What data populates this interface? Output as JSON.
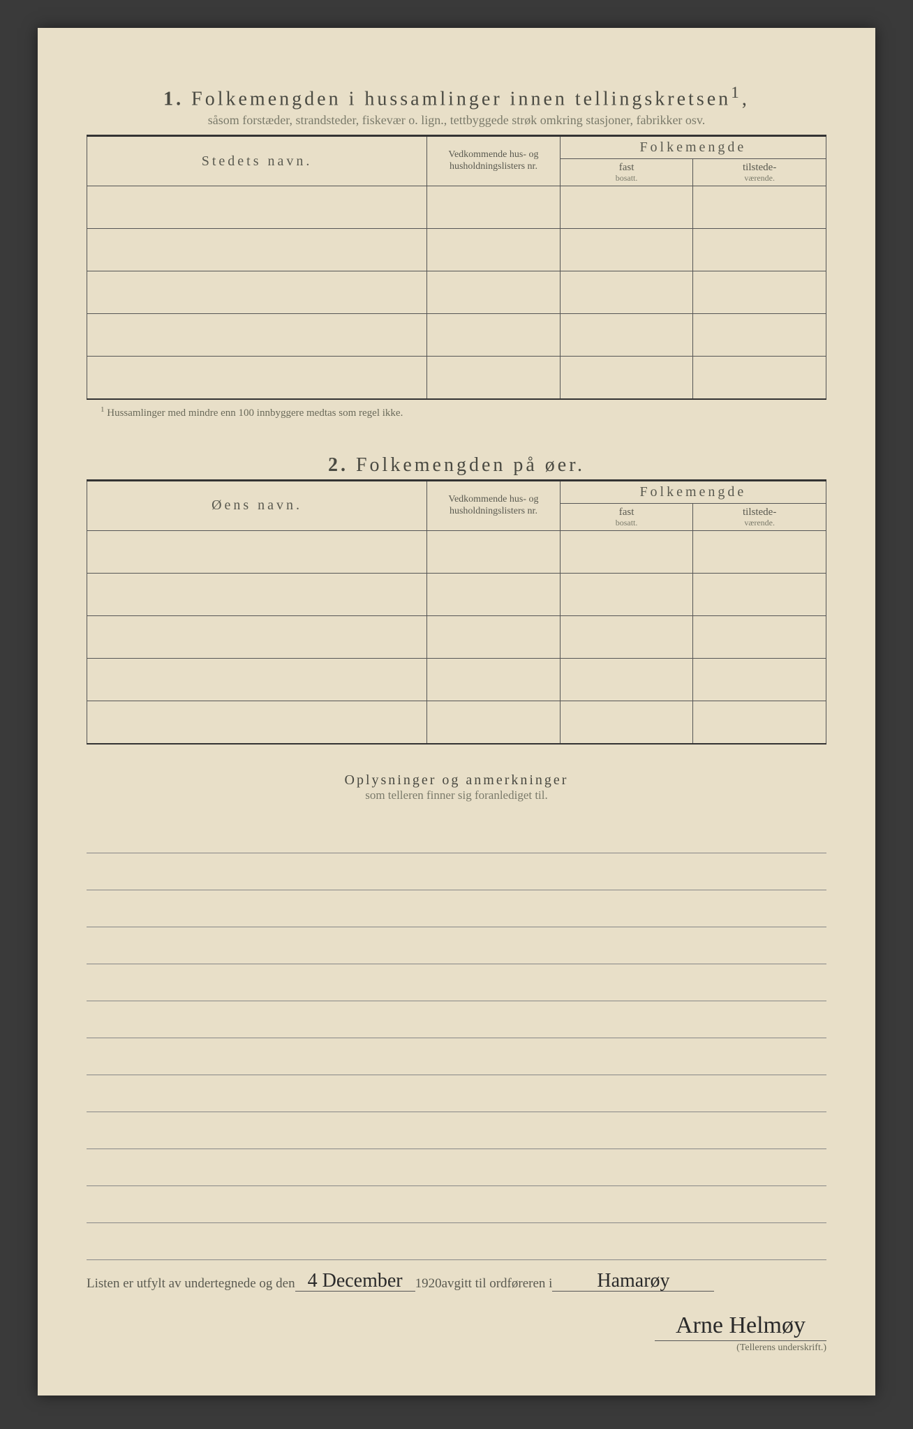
{
  "section1": {
    "number": "1.",
    "title": "Folkemengden i hussamlinger innen tellingskretsen",
    "title_sup": "1",
    "subtitle": "såsom forstæder, strandsteder, fiskevær o. lign., tettbyggede strøk omkring stasjoner, fabrikker osv.",
    "col_name": "Stedets navn.",
    "col_ref": "Vedkommende hus- og husholdningslisters nr.",
    "col_folke": "Folkemengde",
    "col_fast": "fast",
    "col_fast_sub": "bosatt.",
    "col_tilst": "tilstede-",
    "col_tilst_sub": "værende.",
    "row_count": 5
  },
  "footnote": {
    "marker": "1",
    "text": "Hussamlinger med mindre enn 100 innbyggere medtas som regel ikke."
  },
  "section2": {
    "number": "2.",
    "title": "Folkemengden på øer.",
    "col_name": "Øens navn.",
    "col_ref": "Vedkommende hus- og husholdningslisters nr.",
    "col_folke": "Folkemengde",
    "col_fast": "fast",
    "col_fast_sub": "bosatt.",
    "col_tilst": "tilstede-",
    "col_tilst_sub": "værende.",
    "row_count": 5
  },
  "oplys": {
    "title": "Oplysninger og anmerkninger",
    "subtitle": "som telleren finner sig foranlediget til.",
    "line_count": 12
  },
  "bottom": {
    "prefix": "Listen er utfylt av undertegnede og den",
    "date_hand": "4 December",
    "year": "1920",
    "mid": " avgitt til ordføreren i ",
    "place_hand": "Hamarøy",
    "signature": "Arne Helmøy",
    "sig_caption": "(Tellerens underskrift.)"
  },
  "colors": {
    "paper": "#e8dfc8",
    "ink": "#4a4a42",
    "faint": "#7a7a6a",
    "line": "#555",
    "bg": "#3a3a3a"
  }
}
